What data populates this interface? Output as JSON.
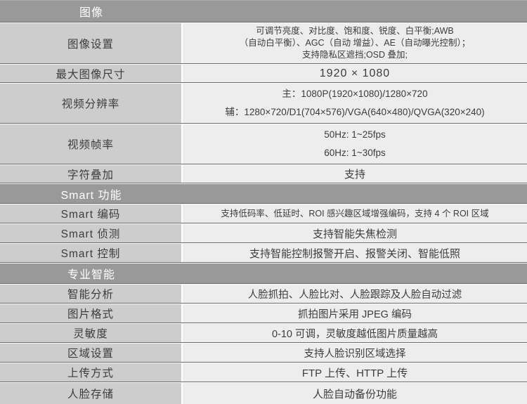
{
  "colors": {
    "section_header_bg": "#999999",
    "section_header_text": "#ffffff",
    "label_cell_bg": "#cdcdcd",
    "value_cell_bg": "#ededed",
    "row_divider_dark": "#6d6d6d",
    "row_divider_light": "#fbfbfb",
    "text": "#3c3c3c"
  },
  "rows": [
    {
      "type": "section",
      "label": "图像"
    },
    {
      "type": "row",
      "label": "图像设置",
      "value_lines": [
        "可调节亮度、对比度、饱和度、锐度、白平衡;AWB",
        "（自动白平衡）、AGC（自动 增益）、AE（自动曝光控制）；",
        "支持隐私区遮挡;OSD 叠加;"
      ]
    },
    {
      "type": "row",
      "label": "最大图像尺寸",
      "value_lines": [
        "1920 × 1080"
      ]
    },
    {
      "type": "row",
      "label": "视频分辨率",
      "value_lines": [
        "主：1080P(1920×1080)/1280×720",
        "辅：1280×720/D1(704×576)/VGA(640×480)/QVGA(320×240)"
      ]
    },
    {
      "type": "row",
      "label": "视频帧率",
      "value_lines": [
        "50Hz: 1~25fps",
        "60Hz: 1~30fps"
      ]
    },
    {
      "type": "row",
      "label": "字符叠加",
      "value_lines": [
        "支持"
      ]
    },
    {
      "type": "section",
      "label": "Smart 功能"
    },
    {
      "type": "row",
      "label": "Smart 编码",
      "value_lines": [
        "支持低码率、低延时、ROI 感兴趣区域增强编码，支持 4 个 ROI 区域"
      ]
    },
    {
      "type": "row",
      "label": "Smart 侦测",
      "value_lines": [
        "支持智能失焦检测"
      ]
    },
    {
      "type": "row",
      "label": "Smart 控制",
      "value_lines": [
        "支持智能控制报警开启、报警关闭、智能低照"
      ]
    },
    {
      "type": "section",
      "label": "专业智能"
    },
    {
      "type": "row",
      "label": "智能分析",
      "value_lines": [
        "人脸抓拍、人脸比对、人脸跟踪及人脸自动过滤"
      ]
    },
    {
      "type": "row",
      "label": "图片格式",
      "value_lines": [
        "抓拍图片采用 JPEG 编码"
      ]
    },
    {
      "type": "row",
      "label": "灵敏度",
      "value_lines": [
        "0-10 可调，灵敏度越低图片质量越高"
      ]
    },
    {
      "type": "row",
      "label": "区域设置",
      "value_lines": [
        "支持人脸识别区域选择"
      ]
    },
    {
      "type": "row",
      "label": "上传方式",
      "value_lines": [
        "FTP 上传、HTTP 上传"
      ]
    },
    {
      "type": "row",
      "label": "人脸存储",
      "value_lines": [
        "人脸自动备份功能"
      ]
    }
  ]
}
